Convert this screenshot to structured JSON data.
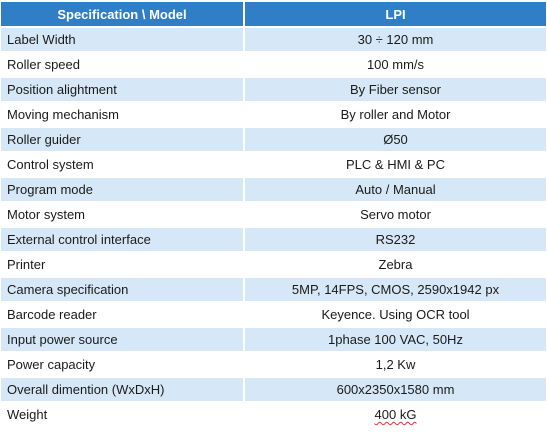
{
  "table": {
    "headers": [
      "Specification \\ Model",
      "LPI"
    ],
    "rows": [
      {
        "label": "Label Width",
        "value": "30 ÷ 120 mm"
      },
      {
        "label": "Roller speed",
        "value": "100 mm/s"
      },
      {
        "label": "Position alightment",
        "value": "By Fiber sensor"
      },
      {
        "label": "Moving mechanism",
        "value": "By roller and Motor"
      },
      {
        "label": "Roller guider",
        "value": "Ø50"
      },
      {
        "label": "Control system",
        "value": "PLC & HMI & PC"
      },
      {
        "label": "Program mode",
        "value": "Auto / Manual"
      },
      {
        "label": "Motor system",
        "value": "Servo motor"
      },
      {
        "label": "External control interface",
        "value": "RS232"
      },
      {
        "label": "Printer",
        "value": "Zebra"
      },
      {
        "label": "Camera specification",
        "value": "5MP, 14FPS, CMOS, 2590x1942 px"
      },
      {
        "label": "Barcode reader",
        "value": "Keyence. Using OCR tool"
      },
      {
        "label": "Input power source",
        "value": "1phase 100 VAC, 50Hz"
      },
      {
        "label": "Power capacity",
        "value": "1,2 Kw"
      },
      {
        "label": "Overall dimention (WxDxH)",
        "value": "600x2350x1580 mm"
      },
      {
        "label": "Weight",
        "value": "400 kG"
      }
    ]
  },
  "colors": {
    "header_bg": "#2f7ec6",
    "header_text": "#ffffff",
    "row_shade": "#d6e8f7",
    "row_plain": "#ffffff"
  }
}
